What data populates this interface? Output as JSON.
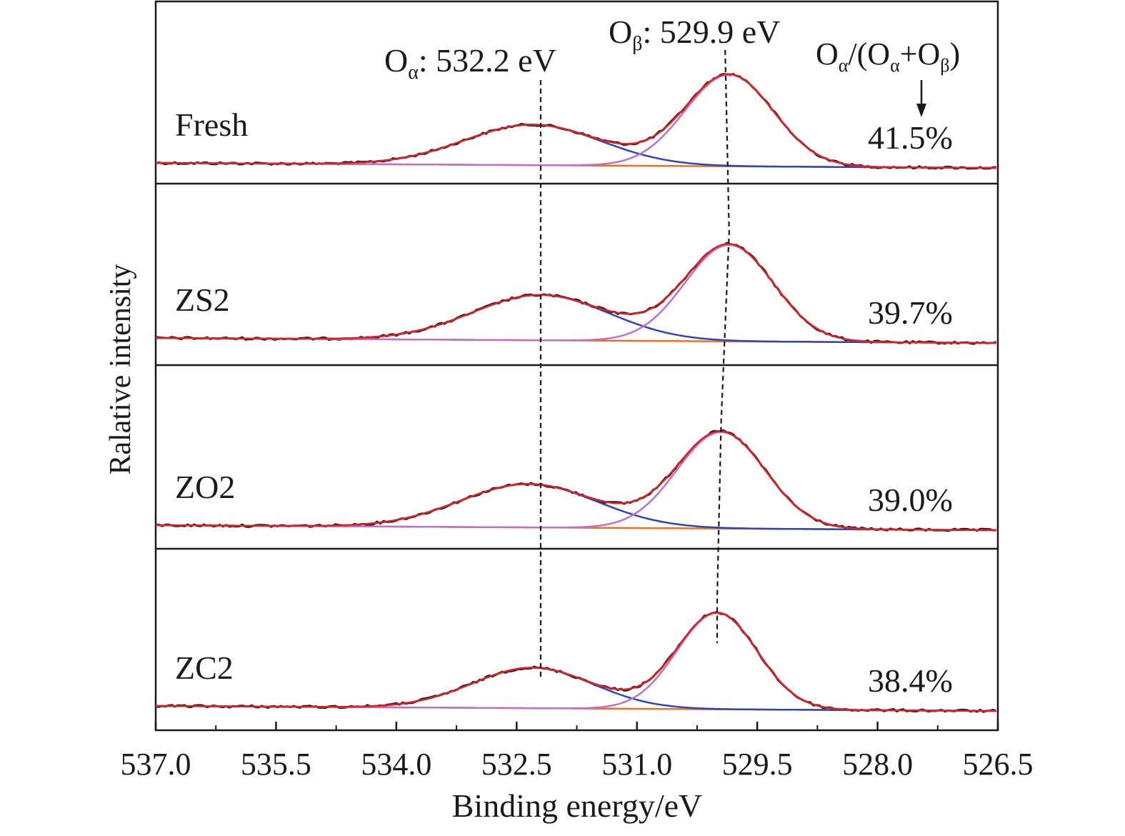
{
  "chart_data": {
    "type": "line",
    "xlabel": "Binding energy/eV",
    "ylabel": "Ralative intensity",
    "xlim": [
      537.0,
      526.5
    ],
    "x_reversed": true,
    "xticks": [
      537.0,
      535.5,
      534.0,
      532.5,
      531.0,
      529.5,
      528.0,
      526.5
    ],
    "xtick_labels": [
      "537.0",
      "535.5",
      "534.0",
      "532.5",
      "531.0",
      "529.5",
      "528.0",
      "526.5"
    ],
    "annotations": {
      "o_alpha": {
        "symbol": "O",
        "sub": "α",
        "text": ": 532.2 eV",
        "x": 532.2
      },
      "o_beta": {
        "symbol": "O",
        "sub": "β",
        "text": ": 529.9 eV"
      },
      "ratio_header": {
        "o1": "O",
        "s1": "α",
        "mid": "/(O",
        "s2": "α",
        "plus": "+O",
        "s3": "β",
        "end": ")"
      }
    },
    "components": [
      {
        "name": "Raw data",
        "color": "#1a1a1a"
      },
      {
        "name": "Fitted envelope",
        "color": "#e02020"
      },
      {
        "name": "Oα component",
        "color": "#2f46b4"
      },
      {
        "name": "Oβ component",
        "color": "#c070c8"
      },
      {
        "name": "Background",
        "color": "#f07020"
      }
    ],
    "panels": [
      {
        "label": "Fresh",
        "ratio": "41.5%",
        "o_alpha_center": 532.3,
        "o_alpha_height": 0.42,
        "o_alpha_sigma": 0.85,
        "o_beta_center": 529.85,
        "o_beta_height": 0.95,
        "o_beta_sigma": 0.55,
        "o_beta_marker": 529.9
      },
      {
        "label": "ZS2",
        "ratio": "39.7%",
        "o_alpha_center": 532.2,
        "o_alpha_height": 0.47,
        "o_alpha_sigma": 0.85,
        "o_beta_center": 529.85,
        "o_beta_height": 1.0,
        "o_beta_sigma": 0.55,
        "o_beta_marker": 529.85
      },
      {
        "label": "ZO2",
        "ratio": "39.0%",
        "o_alpha_center": 532.35,
        "o_alpha_height": 0.45,
        "o_alpha_sigma": 0.85,
        "o_beta_center": 529.95,
        "o_beta_height": 1.0,
        "o_beta_sigma": 0.55,
        "o_beta_marker": 529.95
      },
      {
        "label": "ZC2",
        "ratio": "38.4%",
        "o_alpha_center": 532.3,
        "o_alpha_height": 0.42,
        "o_alpha_sigma": 0.75,
        "o_beta_center": 530.0,
        "o_beta_height": 1.0,
        "o_beta_sigma": 0.5,
        "o_beta_marker": 530.0
      }
    ]
  }
}
